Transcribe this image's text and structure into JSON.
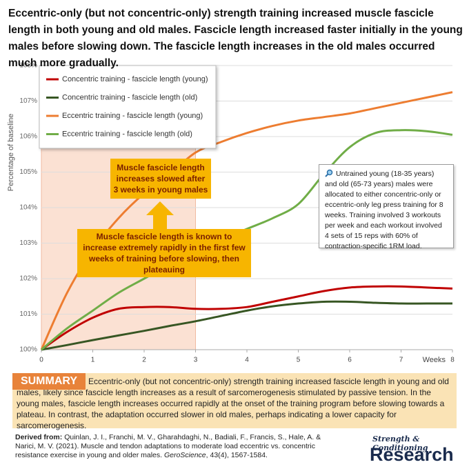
{
  "chart_data": {
    "type": "line",
    "title": "Eccentric-only (but not concentric-only) strength training increased muscle fascicle length in both young and old males. Fascicle length increased faster initially in the young males before slowing down. The fascicle length increases in the old males occurred much more gradually.",
    "y_label": "Percentage of baseline",
    "x_label": "Weeks",
    "x": [
      0,
      0.5,
      1,
      1.5,
      2,
      2.5,
      3,
      3.5,
      4,
      4.5,
      5,
      5.5,
      6,
      6.5,
      7,
      7.5,
      8
    ],
    "series": [
      {
        "name": "Concentric training - fascicle length (young)",
        "color": "#c00000",
        "values": [
          100,
          100.5,
          100.9,
          101.15,
          101.2,
          101.2,
          101.15,
          101.15,
          101.2,
          101.35,
          101.5,
          101.65,
          101.75,
          101.78,
          101.78,
          101.75,
          101.72
        ]
      },
      {
        "name": "Concentric training - fascicle length (old)",
        "color": "#375623",
        "values": [
          100,
          100.13,
          100.27,
          100.4,
          100.53,
          100.67,
          100.8,
          100.95,
          101.1,
          101.22,
          101.3,
          101.35,
          101.35,
          101.32,
          101.3,
          101.3,
          101.3
        ]
      },
      {
        "name": "Eccentric training - fascicle length (young)",
        "color": "#ed7d31",
        "values": [
          100,
          101.6,
          102.8,
          103.7,
          104.4,
          104.95,
          105.55,
          105.85,
          106.1,
          106.3,
          106.45,
          106.55,
          106.65,
          106.8,
          106.95,
          107.1,
          107.25
        ]
      },
      {
        "name": "Eccentric training - fascicle length (old)",
        "color": "#70ad47",
        "values": [
          100,
          100.6,
          101.1,
          101.6,
          102.0,
          102.4,
          102.8,
          103.1,
          103.4,
          103.7,
          104.1,
          104.95,
          105.7,
          106.1,
          106.18,
          106.15,
          106.05
        ]
      }
    ],
    "xlim": [
      0,
      8
    ],
    "ylim": [
      100,
      108
    ],
    "xticks": [
      0,
      1,
      2,
      3,
      4,
      5,
      6,
      7,
      8
    ],
    "yticks": [
      {
        "value": 100,
        "label": "100%"
      },
      {
        "value": 101,
        "label": "101%"
      },
      {
        "value": 102,
        "label": "102%"
      },
      {
        "value": 103,
        "label": "103%"
      },
      {
        "value": 104,
        "label": "104%"
      },
      {
        "value": 105,
        "label": "105%"
      },
      {
        "value": 106,
        "label": "106%"
      },
      {
        "value": 107,
        "label": "107%"
      },
      {
        "value": 108,
        "label": "108%"
      }
    ],
    "grid": true,
    "legend": "top-left",
    "highlight_range": [
      0,
      3
    ],
    "annotations": [
      "Muscle fascicle length increases slowed after 3 weeks in young males",
      "Muscle fascicle length is known to increase extremely rapidly in the first few weeks of training before slowing, then plateauing"
    ],
    "info_box": "Untrained young (18-35 years) and old (65-73 years) males were allocated to either concentric-only or eccentric-only leg press training for 8 weeks. Training involved 3 workouts per week and each workout involved 4 sets of 15 reps with 60% of contraction-specific 1RM load."
  },
  "summary": {
    "label": "SUMMARY",
    "text": "Eccentric-only (but not concentric-only) strength training increased fascicle length in young and old males, likely since fascicle length increases as a result of sarcomerogenesis stimulated by passive tension. In the young males, fascicle length increases occurred rapidly at the onset of the training program before slowing towards a plateau. In contrast, the adaptation occurred slower in old males, perhaps indicating a lower capacity for sarcomerogenesis."
  },
  "citation": {
    "label": "Derived from:",
    "text": "Quinlan, J. I., Franchi, M. V., Gharahdaghi, N., Badiali, F., Francis, S., Hale, A. & Narici, M. V. (2021). Muscle and tendon adaptations to moderate load eccentric vs. concentric resistance exercise in young and older males.",
    "journal": "GeroScience",
    "details": ", 43(4), 1567-1584."
  },
  "logo": {
    "top": "Strength & Conditioning",
    "bottom": "Research"
  }
}
